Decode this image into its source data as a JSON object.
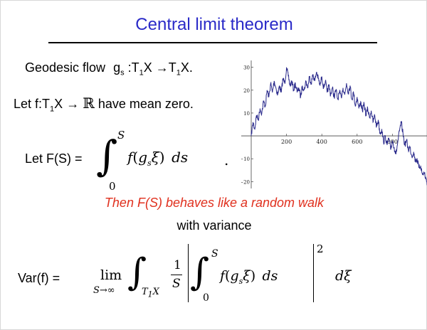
{
  "slide": {
    "title": "Central limit theorem",
    "line1": {
      "prefix": "Geodesic flow",
      "g": "g",
      "g_sub": "s",
      "colon": ":",
      "dom": "T",
      "dom_sub": "1",
      "dom_tail": "X",
      "arrow": "→",
      "cod": "T",
      "cod_sub": "1",
      "cod_tail": "X."
    },
    "line2": {
      "prefix": "Let f:T",
      "sub": "1",
      "mid": "X",
      "arrow": "→",
      "reals": "ℝ",
      "suffix": "have mean zero."
    },
    "line3": {
      "label": "Let F(S) =",
      "integral": "∫",
      "upper": "S",
      "lower": "0",
      "integrand_f": "f",
      "lp": "(",
      "g": "g",
      "g_sub": "s",
      "xi": "ξ",
      "rp": ")",
      "ds": "ds",
      "dot": "."
    },
    "statement": "Then F(S) behaves like a random walk",
    "variance_label": "with variance",
    "formula": {
      "label": "Var(f) =",
      "lim": "lim",
      "lim_sub": "S→∞",
      "integral": "∫",
      "domain": "T",
      "domain_sub": "1",
      "domain_tail": "X",
      "frac_num": "1",
      "frac_den": "S",
      "bar": "|",
      "inner_integral": "∫",
      "inner_upper": "S",
      "inner_lower": "0",
      "integrand_f": "f",
      "lp": "(",
      "g": "g",
      "g_sub": "s",
      "xi": "ξ",
      "rp": ")",
      "ds": "ds",
      "power": "2",
      "dxi": "dξ"
    }
  },
  "chart_data": {
    "type": "line",
    "title": "",
    "xlabel": "",
    "ylabel": "",
    "x_ticks": [
      200,
      400,
      600,
      800
    ],
    "y_ticks": [
      30,
      20,
      10,
      -10,
      -20
    ],
    "x_tick_labels": [
      "200",
      "400",
      "600",
      "800"
    ],
    "y_tick_labels": [
      "30",
      "20",
      "10",
      "−10",
      "−20"
    ],
    "xlim": [
      0,
      1000
    ],
    "ylim": [
      -23,
      33
    ],
    "grid": false,
    "color": "#2b2b8c",
    "series": [
      {
        "x": [
          0,
          10,
          20,
          30,
          40,
          50,
          60,
          70,
          80,
          90,
          100,
          110,
          120,
          130,
          140,
          150,
          160,
          170,
          180,
          190,
          200,
          210,
          220,
          230,
          240,
          250,
          260,
          270,
          280,
          290,
          300,
          310,
          320,
          330,
          340,
          350,
          360,
          370,
          380,
          390,
          400,
          410,
          420,
          430,
          440,
          450,
          460,
          470,
          480,
          490,
          500,
          510,
          520,
          530,
          540,
          550,
          560,
          570,
          580,
          590,
          600,
          610,
          620,
          630,
          640,
          650,
          660,
          670,
          680,
          690,
          700,
          710,
          720,
          730,
          740,
          750,
          760,
          770,
          780,
          790,
          800,
          810,
          820,
          830,
          840,
          850,
          860,
          870,
          880,
          890,
          900,
          910,
          920,
          930,
          940,
          950,
          960,
          970,
          980,
          990,
          1000
        ],
        "y": [
          0,
          6,
          3,
          9,
          7,
          12,
          10,
          15,
          13,
          20,
          17,
          23,
          19,
          24,
          21,
          18,
          22,
          19,
          25,
          23,
          30,
          26,
          22,
          24,
          20,
          23,
          19,
          21,
          17,
          22,
          20,
          24,
          21,
          26,
          23,
          27,
          24,
          28,
          25,
          22,
          26,
          21,
          24,
          19,
          22,
          18,
          21,
          17,
          20,
          16,
          19,
          17,
          21,
          18,
          23,
          19,
          22,
          16,
          19,
          13,
          17,
          12,
          15,
          11,
          14,
          9,
          12,
          8,
          11,
          6,
          9,
          4,
          7,
          1,
          3,
          -3,
          0,
          -4,
          -1,
          -6,
          -2,
          -5,
          -8,
          -3,
          2,
          6,
          1,
          -4,
          -2,
          -6,
          -5,
          -9,
          -7,
          -11,
          -10,
          -14,
          -13,
          -17,
          -16,
          -19,
          -21
        ]
      }
    ]
  }
}
